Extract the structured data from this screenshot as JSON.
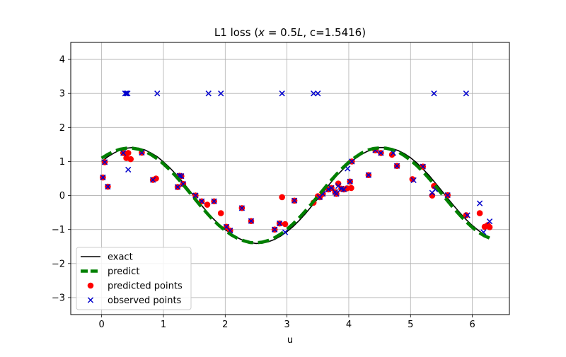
{
  "chart_data": {
    "type": "scatter",
    "title": "L1 loss (x = 0.5L, c=1.5416)",
    "title_parts": {
      "prefix": "L1 loss (",
      "math": "x",
      "equals": " = 0.5",
      "math2": "L",
      "suffix": ", c=1.5416)"
    },
    "xlabel": "u",
    "ylabel": "",
    "xlim": [
      -0.5,
      6.6
    ],
    "ylim": [
      -3.5,
      4.5
    ],
    "grid": true,
    "legend_position": "lower-left",
    "xticks": [
      0,
      1,
      2,
      3,
      4,
      5,
      6
    ],
    "xtick_labels": [
      "0",
      "1",
      "2",
      "3",
      "4",
      "5",
      "6"
    ],
    "yticks": [
      -3,
      -2,
      -1,
      0,
      1,
      2,
      3,
      4
    ],
    "ytick_labels": [
      "−3",
      "−2",
      "−1",
      "0",
      "1",
      "2",
      "3",
      "4"
    ],
    "colors": {
      "exact": "#000000",
      "predict": "#008000",
      "predicted": "#ff0000",
      "observed": "#0000cc"
    },
    "series": [
      {
        "name": "exact",
        "kind": "line",
        "x": [
          0.0,
          0.1,
          0.2,
          0.3,
          0.4,
          0.5,
          0.6,
          0.7,
          0.8,
          0.9,
          1.0,
          1.1,
          1.2,
          1.3,
          1.4,
          1.5,
          1.6,
          1.7,
          1.8,
          1.9,
          2.0,
          2.1,
          2.2,
          2.3,
          2.4,
          2.5,
          2.6,
          2.7,
          2.8,
          2.9,
          3.0,
          3.1,
          3.2,
          3.3,
          3.4,
          3.5,
          3.6,
          3.7,
          3.8,
          3.9,
          4.0,
          4.1,
          4.2,
          4.3,
          4.4,
          4.5,
          4.6,
          4.7,
          4.8,
          4.9,
          5.0,
          5.1,
          5.2,
          5.3,
          5.4,
          5.5,
          5.6,
          5.7,
          5.8,
          5.9,
          6.0,
          6.1,
          6.2,
          6.28
        ],
        "y": [
          1.0,
          1.14,
          1.25,
          1.34,
          1.39,
          1.41,
          1.39,
          1.34,
          1.25,
          1.14,
          0.99,
          0.82,
          0.63,
          0.42,
          0.2,
          -0.03,
          -0.25,
          -0.47,
          -0.67,
          -0.85,
          -1.0,
          -1.13,
          -1.24,
          -1.33,
          -1.38,
          -1.41,
          -1.4,
          -1.36,
          -1.29,
          -1.19,
          -1.06,
          -0.91,
          -0.73,
          -0.53,
          -0.31,
          -0.09,
          0.14,
          0.36,
          0.57,
          0.76,
          0.93,
          1.08,
          1.2,
          1.3,
          1.37,
          1.41,
          1.41,
          1.38,
          1.32,
          1.23,
          1.11,
          0.96,
          0.78,
          0.59,
          0.37,
          0.15,
          -0.08,
          -0.3,
          -0.51,
          -0.71,
          -0.88,
          -1.03,
          -1.16,
          -1.24
        ]
      },
      {
        "name": "predict",
        "kind": "line",
        "x": [
          0.0,
          0.1,
          0.2,
          0.3,
          0.4,
          0.5,
          0.6,
          0.7,
          0.8,
          0.9,
          1.0,
          1.1,
          1.2,
          1.3,
          1.4,
          1.5,
          1.6,
          1.7,
          1.8,
          1.9,
          2.0,
          2.1,
          2.2,
          2.3,
          2.4,
          2.5,
          2.6,
          2.7,
          2.8,
          2.9,
          3.0,
          3.1,
          3.2,
          3.3,
          3.4,
          3.5,
          3.6,
          3.7,
          3.8,
          3.9,
          4.0,
          4.1,
          4.2,
          4.3,
          4.4,
          4.5,
          4.6,
          4.7,
          4.8,
          4.9,
          5.0,
          5.1,
          5.2,
          5.3,
          5.4,
          5.5,
          5.6,
          5.7,
          5.8,
          5.9,
          6.0,
          6.1,
          6.2,
          6.28
        ],
        "y": [
          1.1,
          1.21,
          1.3,
          1.36,
          1.39,
          1.39,
          1.36,
          1.3,
          1.2,
          1.08,
          0.93,
          0.76,
          0.57,
          0.36,
          0.14,
          -0.08,
          -0.3,
          -0.51,
          -0.71,
          -0.88,
          -1.03,
          -1.16,
          -1.26,
          -1.33,
          -1.38,
          -1.39,
          -1.37,
          -1.32,
          -1.24,
          -1.13,
          -0.99,
          -0.83,
          -0.65,
          -0.45,
          -0.24,
          -0.02,
          0.2,
          0.42,
          0.62,
          0.81,
          0.98,
          1.12,
          1.24,
          1.33,
          1.38,
          1.4,
          1.39,
          1.35,
          1.28,
          1.17,
          1.04,
          0.88,
          0.7,
          0.5,
          0.29,
          0.06,
          -0.16,
          -0.38,
          -0.58,
          -0.77,
          -0.94,
          -1.08,
          -1.19,
          -1.25
        ]
      },
      {
        "name": "predicted points",
        "kind": "scatter",
        "marker": "circle",
        "x": [
          0.02,
          0.05,
          0.1,
          0.35,
          0.4,
          0.43,
          0.47,
          0.65,
          0.83,
          0.88,
          1.23,
          1.26,
          1.29,
          1.32,
          1.52,
          1.62,
          1.71,
          1.82,
          1.93,
          2.02,
          2.08,
          2.27,
          2.42,
          2.8,
          2.88,
          2.92,
          2.97,
          3.12,
          3.43,
          3.5,
          3.53,
          3.58,
          3.67,
          3.72,
          3.78,
          3.8,
          3.83,
          3.88,
          3.92,
          3.97,
          4.02,
          4.04,
          4.05,
          4.32,
          4.43,
          4.52,
          4.7,
          4.78,
          5.03,
          5.2,
          5.35,
          5.38,
          5.6,
          5.9,
          6.12,
          6.2,
          6.25,
          6.28
        ],
        "y": [
          0.53,
          0.98,
          0.26,
          1.25,
          1.1,
          1.25,
          1.07,
          1.26,
          0.46,
          0.5,
          0.25,
          0.58,
          0.57,
          0.34,
          0.0,
          -0.17,
          -0.27,
          -0.17,
          -0.52,
          -0.92,
          -1.03,
          -0.37,
          -0.75,
          -1.0,
          -0.82,
          -0.05,
          -0.84,
          -0.15,
          -0.21,
          -0.02,
          -0.05,
          0.05,
          0.18,
          0.22,
          0.1,
          0.05,
          0.35,
          0.2,
          0.18,
          0.21,
          0.41,
          0.22,
          1.0,
          0.6,
          1.33,
          1.25,
          1.2,
          0.87,
          0.48,
          0.85,
          0.0,
          0.28,
          0.01,
          -0.58,
          -0.52,
          -0.92,
          -0.87,
          -0.93
        ]
      },
      {
        "name": "observed points",
        "kind": "scatter",
        "marker": "x",
        "x": [
          0.02,
          0.05,
          0.1,
          0.35,
          0.38,
          0.4,
          0.42,
          0.43,
          0.65,
          0.83,
          0.9,
          1.23,
          1.26,
          1.29,
          1.32,
          1.52,
          1.62,
          1.73,
          1.82,
          1.93,
          2.02,
          2.08,
          2.27,
          2.42,
          2.8,
          2.88,
          2.92,
          2.97,
          3.12,
          3.43,
          3.5,
          3.53,
          3.58,
          3.67,
          3.72,
          3.78,
          3.8,
          3.83,
          3.88,
          3.92,
          3.98,
          4.02,
          4.05,
          4.32,
          4.43,
          4.52,
          4.72,
          4.78,
          5.05,
          5.2,
          5.35,
          5.38,
          5.4,
          5.6,
          5.9,
          5.92,
          6.12,
          6.18,
          6.28
        ],
        "y": [
          0.53,
          0.98,
          0.26,
          1.25,
          3.0,
          3.0,
          3.0,
          0.76,
          1.26,
          0.46,
          3.0,
          0.25,
          0.58,
          0.57,
          0.34,
          0.0,
          -0.17,
          3.0,
          -0.17,
          3.0,
          -0.92,
          -1.03,
          -0.37,
          -0.75,
          -1.0,
          -0.82,
          3.0,
          -1.08,
          -0.15,
          3.0,
          3.0,
          -0.05,
          0.05,
          0.18,
          0.22,
          0.1,
          0.05,
          0.28,
          0.2,
          0.18,
          0.79,
          0.41,
          1.0,
          0.6,
          1.33,
          1.25,
          1.25,
          0.87,
          0.45,
          0.85,
          0.08,
          3.0,
          0.18,
          0.01,
          3.0,
          -0.58,
          -0.23,
          -1.08,
          -0.76
        ]
      }
    ]
  }
}
